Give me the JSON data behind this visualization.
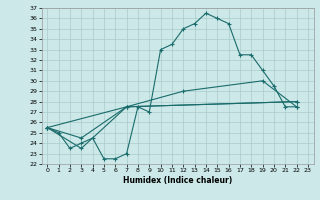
{
  "title": "",
  "xlabel": "Humidex (Indice chaleur)",
  "ylabel": "",
  "bg_color": "#cce8e8",
  "grid_color": "#aacccc",
  "line_color": "#1a6b6b",
  "xlim": [
    -0.5,
    23.5
  ],
  "ylim": [
    22,
    37
  ],
  "yticks": [
    22,
    23,
    24,
    25,
    26,
    27,
    28,
    29,
    30,
    31,
    32,
    33,
    34,
    35,
    36,
    37
  ],
  "xticks": [
    0,
    1,
    2,
    3,
    4,
    5,
    6,
    7,
    8,
    9,
    10,
    11,
    12,
    13,
    14,
    15,
    16,
    17,
    18,
    19,
    20,
    21,
    22,
    23
  ],
  "series1": [
    [
      0,
      25.5
    ],
    [
      1,
      25.0
    ],
    [
      2,
      23.5
    ],
    [
      3,
      24.0
    ],
    [
      4,
      24.5
    ],
    [
      5,
      22.5
    ],
    [
      6,
      22.5
    ],
    [
      7,
      23.0
    ],
    [
      8,
      27.5
    ],
    [
      9,
      27.0
    ],
    [
      10,
      33.0
    ],
    [
      11,
      33.5
    ],
    [
      12,
      35.0
    ],
    [
      13,
      35.5
    ],
    [
      14,
      36.5
    ],
    [
      15,
      36.0
    ],
    [
      16,
      35.5
    ],
    [
      17,
      32.5
    ],
    [
      18,
      32.5
    ],
    [
      19,
      31.0
    ],
    [
      20,
      29.5
    ],
    [
      21,
      27.5
    ],
    [
      22,
      27.5
    ]
  ],
  "series2": [
    [
      0,
      25.5
    ],
    [
      3,
      24.5
    ],
    [
      7,
      27.5
    ],
    [
      12,
      29.0
    ],
    [
      19,
      30.0
    ],
    [
      22,
      27.5
    ]
  ],
  "series3": [
    [
      0,
      25.5
    ],
    [
      7,
      27.5
    ],
    [
      22,
      28.0
    ]
  ],
  "series4": [
    [
      0,
      25.5
    ],
    [
      3,
      23.5
    ],
    [
      7,
      27.5
    ],
    [
      22,
      28.0
    ]
  ]
}
